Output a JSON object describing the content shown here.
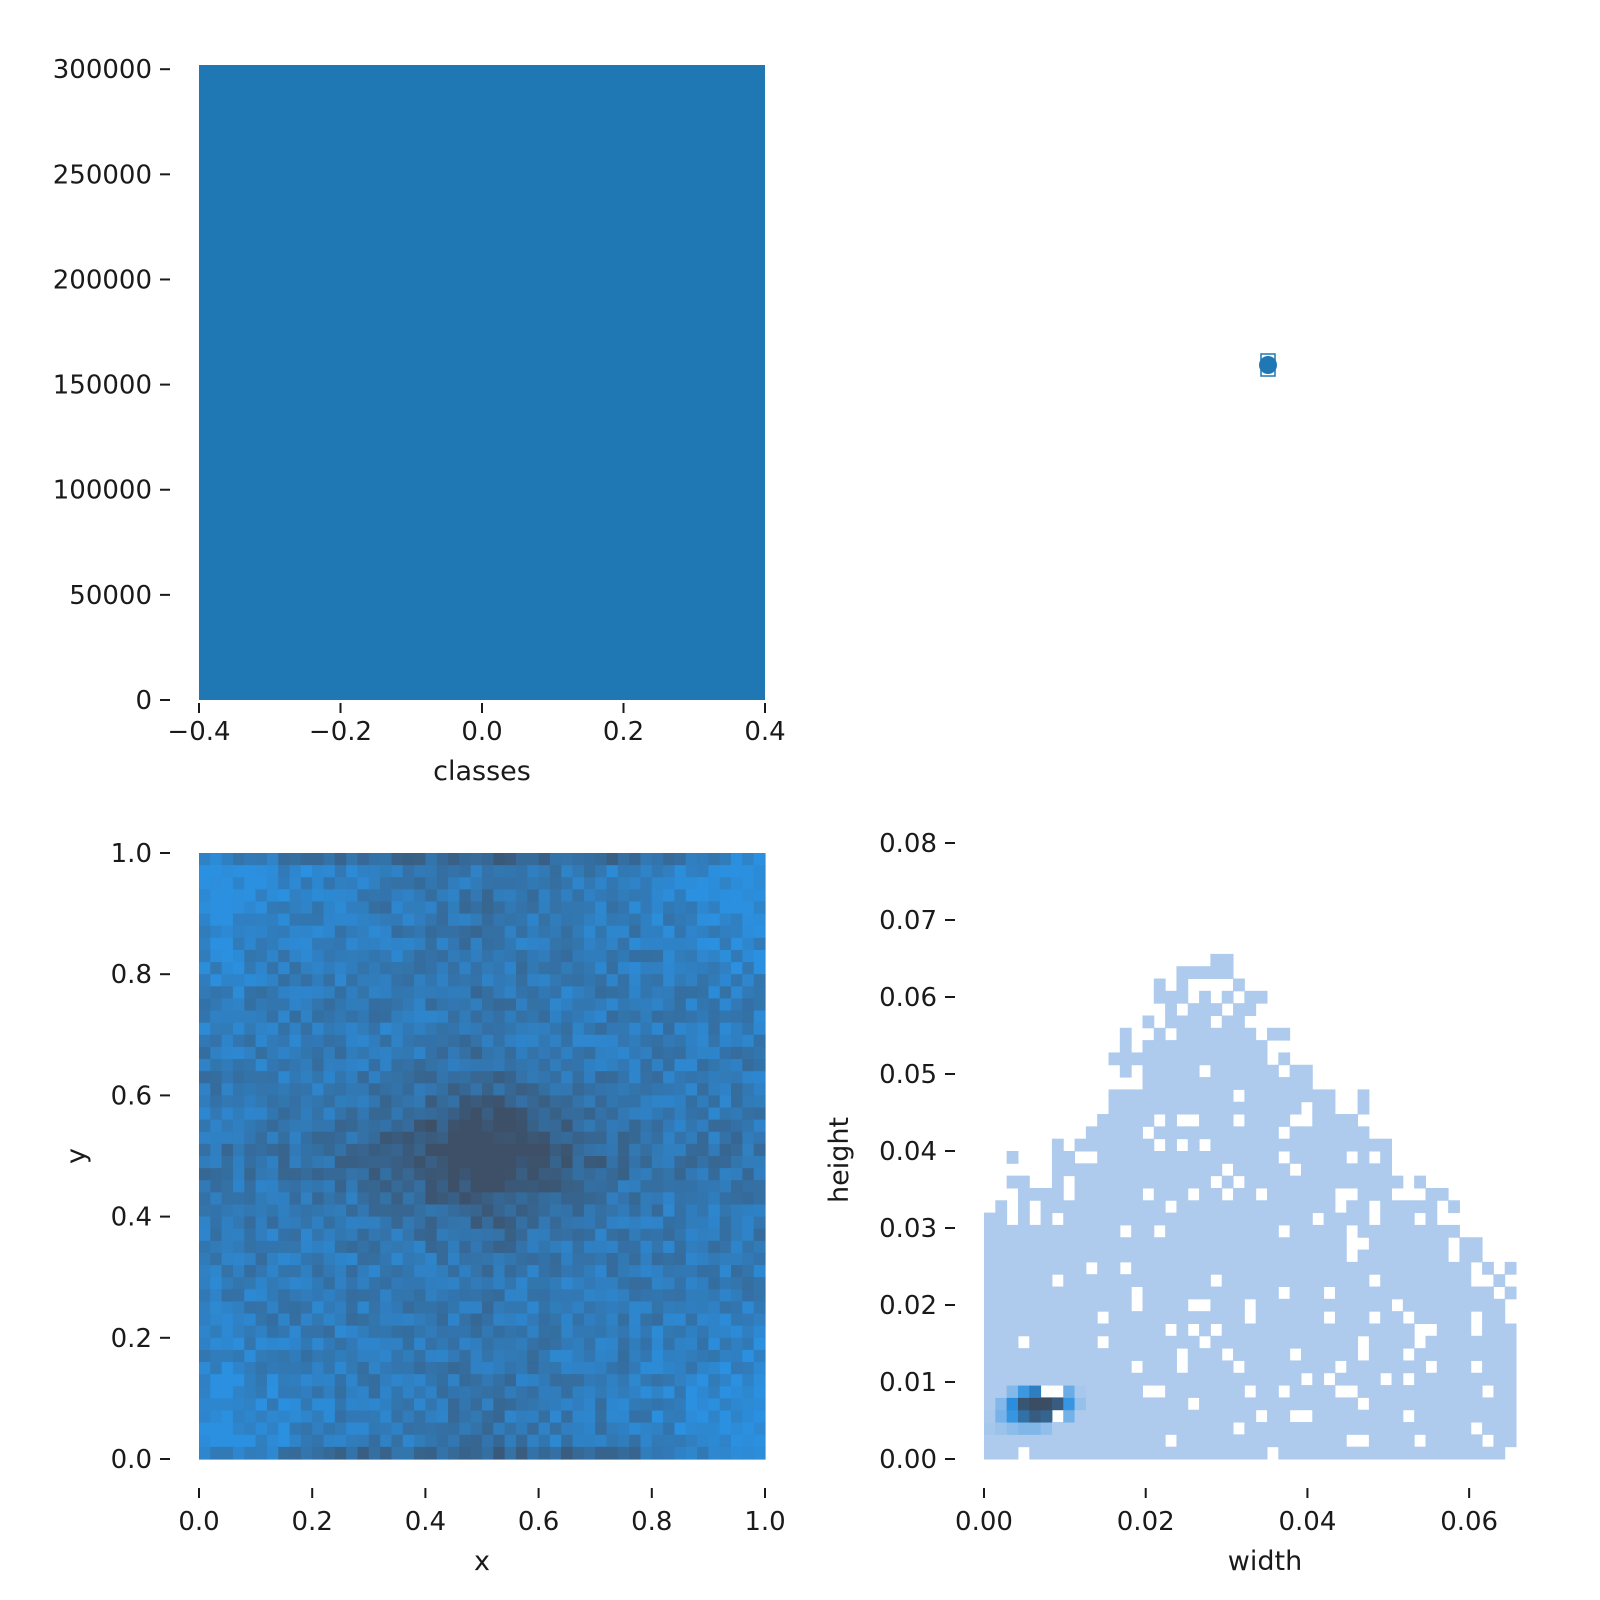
{
  "colors": {
    "bar": "#1f77b4",
    "heat_low": "#2b90e0",
    "heat_high": "#3d5068",
    "hist_light": "#aecbed",
    "hist_dark": "#3a4d63"
  },
  "chart_data": [
    {
      "id": "classes",
      "type": "bar",
      "xlabel": "classes",
      "ylabel": "",
      "categories": [
        0
      ],
      "values": [
        302000
      ],
      "bar_width": 0.8,
      "xlim": [
        -0.4,
        0.4
      ],
      "ylim": [
        0,
        302000
      ],
      "xticks": [
        -0.4,
        -0.2,
        0.0,
        0.2,
        0.4
      ],
      "xtick_labels": [
        "−0.4",
        "−0.2",
        "0.0",
        "0.2",
        "0.4"
      ],
      "yticks": [
        0,
        50000,
        100000,
        150000,
        200000,
        250000,
        300000
      ],
      "ytick_labels": [
        "0",
        "50000",
        "100000",
        "150000",
        "200000",
        "250000",
        "300000"
      ],
      "grid": false,
      "legend": "none"
    },
    {
      "id": "box-marker",
      "type": "scatter",
      "note_visible": false,
      "points": [
        {
          "x": 0,
          "y": 0
        }
      ],
      "axes_visible": false
    },
    {
      "id": "xy",
      "type": "heatmap",
      "xlabel": "x",
      "ylabel": "y",
      "xlim": [
        0,
        1
      ],
      "ylim": [
        0,
        1
      ],
      "bins": 50,
      "xticks": [
        0.0,
        0.2,
        0.4,
        0.6,
        0.8,
        1.0
      ],
      "xtick_labels": [
        "0.0",
        "0.2",
        "0.4",
        "0.6",
        "0.8",
        "1.0"
      ],
      "yticks": [
        0.0,
        0.2,
        0.4,
        0.6,
        0.8,
        1.0
      ],
      "ytick_labels": [
        "0.0",
        "0.2",
        "0.4",
        "0.6",
        "0.8",
        "1.0"
      ],
      "density": "highest near center (0.5, 0.5) and along x=0.5 / y=0.5, lower near edges, slightly higher at bottom and top edge rows",
      "grid": false
    },
    {
      "id": "wh",
      "type": "heatmap",
      "xlabel": "width",
      "ylabel": "height",
      "xlim": [
        0,
        0.07
      ],
      "ylim": [
        0,
        0.08
      ],
      "bins": 50,
      "xticks": [
        0.0,
        0.02,
        0.04,
        0.06
      ],
      "xtick_labels": [
        "0.00",
        "0.02",
        "0.04",
        "0.06"
      ],
      "yticks": [
        0.0,
        0.01,
        0.02,
        0.03,
        0.04,
        0.05,
        0.06,
        0.07,
        0.08
      ],
      "ytick_labels": [
        "0.00",
        "0.01",
        "0.02",
        "0.03",
        "0.04",
        "0.05",
        "0.06",
        "0.07",
        "0.08"
      ],
      "peak": {
        "width": 0.007,
        "height": 0.007
      },
      "grid": false
    }
  ]
}
